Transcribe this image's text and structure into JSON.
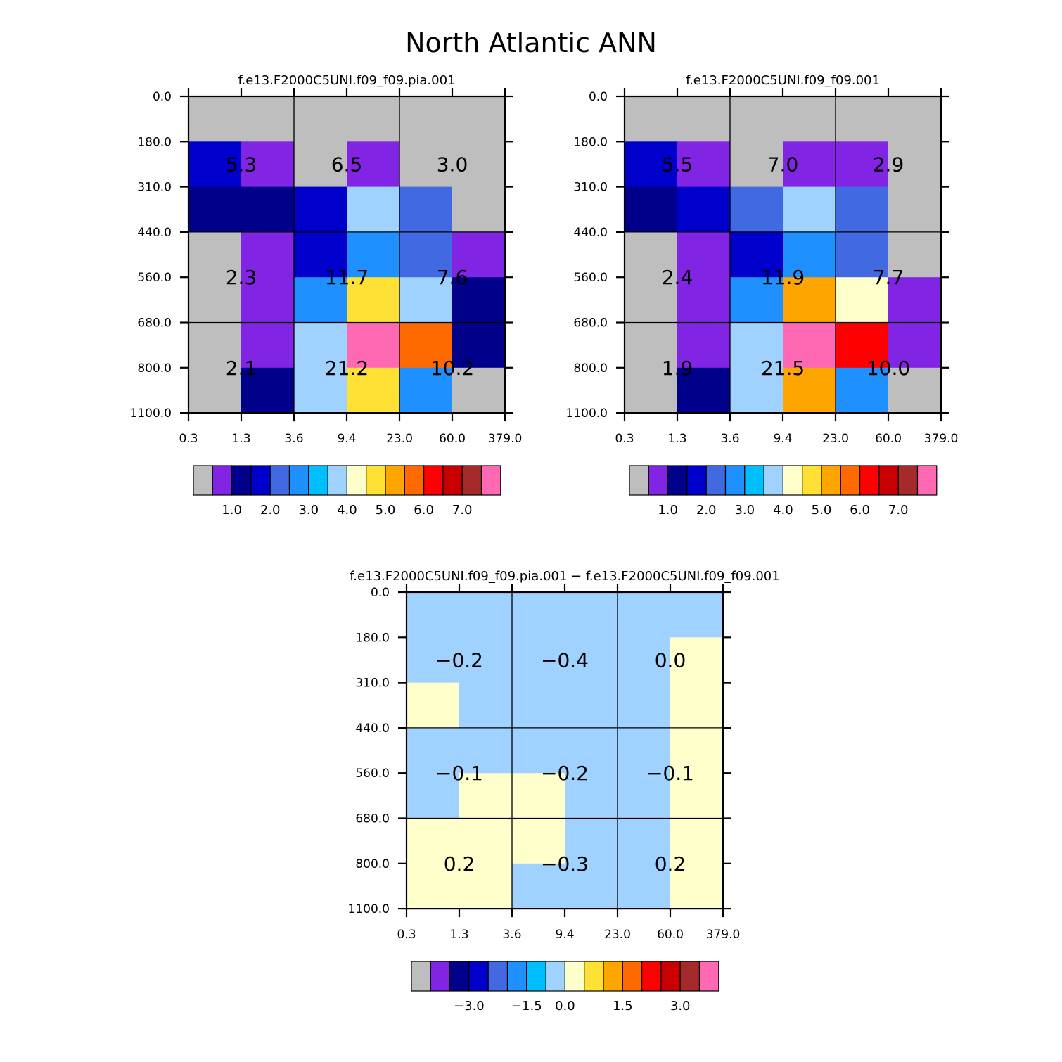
{
  "title": "North Atlantic ANN",
  "palette": [
    "#bebebe",
    "#8224e3",
    "#00008b",
    "#0000cd",
    "#4169e1",
    "#1e90ff",
    "#00bfff",
    "#a0d2ff",
    "#ffffcc",
    "#ffe135",
    "#ffa500",
    "#ff6a00",
    "#ff0000",
    "#c80000",
    "#a52a2a",
    "#ff69b4"
  ],
  "chart_data": [
    {
      "type": "heatmap",
      "title": "f.e13.F2000C5UNI.f09_f09.pia.001",
      "x_ticks": [
        "0.3",
        "1.3",
        "3.6",
        "9.4",
        "23.0",
        "60.0",
        "379.0"
      ],
      "y_ticks": [
        "0.0",
        "180.0",
        "310.0",
        "440.0",
        "560.0",
        "680.0",
        "800.0",
        "1100.0"
      ],
      "grid": true,
      "cell_color_index": [
        [
          0,
          0,
          0,
          0,
          0,
          0
        ],
        [
          3,
          1,
          0,
          1,
          0,
          0
        ],
        [
          2,
          2,
          3,
          7,
          4,
          0
        ],
        [
          0,
          1,
          3,
          5,
          4,
          1
        ],
        [
          0,
          1,
          5,
          9,
          7,
          2
        ],
        [
          0,
          1,
          7,
          15,
          11,
          2
        ],
        [
          0,
          2,
          7,
          9,
          5,
          0
        ]
      ],
      "block_values": [
        [
          "5.3",
          "6.5",
          "3.0"
        ],
        [
          "2.3",
          "11.7",
          "7.6"
        ],
        [
          "2.1",
          "21.2",
          "10.2"
        ]
      ],
      "colorbar": {
        "labels": [
          "1.0",
          "2.0",
          "3.0",
          "4.0",
          "5.0",
          "6.0",
          "7.0"
        ]
      }
    },
    {
      "type": "heatmap",
      "title": "f.e13.F2000C5UNI.f09_f09.001",
      "x_ticks": [
        "0.3",
        "1.3",
        "3.6",
        "9.4",
        "23.0",
        "60.0",
        "379.0"
      ],
      "y_ticks": [
        "0.0",
        "180.0",
        "310.0",
        "440.0",
        "560.0",
        "680.0",
        "800.0",
        "1100.0"
      ],
      "grid": true,
      "cell_color_index": [
        [
          0,
          0,
          0,
          0,
          0,
          0
        ],
        [
          3,
          1,
          0,
          1,
          1,
          0
        ],
        [
          2,
          3,
          4,
          7,
          4,
          0
        ],
        [
          0,
          1,
          3,
          5,
          4,
          0
        ],
        [
          0,
          1,
          5,
          10,
          8,
          1
        ],
        [
          0,
          1,
          7,
          15,
          12,
          1
        ],
        [
          0,
          2,
          7,
          10,
          5,
          0
        ]
      ],
      "block_values": [
        [
          "5.5",
          "7.0",
          "2.9"
        ],
        [
          "2.4",
          "11.9",
          "7.7"
        ],
        [
          "1.9",
          "21.5",
          "10.0"
        ]
      ],
      "colorbar": {
        "labels": [
          "1.0",
          "2.0",
          "3.0",
          "4.0",
          "5.0",
          "6.0",
          "7.0"
        ]
      }
    },
    {
      "type": "heatmap",
      "title": "f.e13.F2000C5UNI.f09_f09.pia.001 − f.e13.F2000C5UNI.f09_f09.001",
      "x_ticks": [
        "0.3",
        "1.3",
        "3.6",
        "9.4",
        "23.0",
        "60.0",
        "379.0"
      ],
      "y_ticks": [
        "0.0",
        "180.0",
        "310.0",
        "440.0",
        "560.0",
        "680.0",
        "800.0",
        "1100.0"
      ],
      "grid": true,
      "cell_color_index": [
        [
          7,
          7,
          7,
          7,
          7,
          7
        ],
        [
          7,
          7,
          7,
          7,
          7,
          8
        ],
        [
          8,
          7,
          7,
          7,
          7,
          8
        ],
        [
          7,
          7,
          7,
          7,
          7,
          8
        ],
        [
          7,
          8,
          8,
          7,
          7,
          8
        ],
        [
          8,
          8,
          8,
          7,
          7,
          8
        ],
        [
          8,
          8,
          7,
          7,
          7,
          8
        ]
      ],
      "block_values": [
        [
          "−0.2",
          "−0.4",
          "0.0"
        ],
        [
          "−0.1",
          "−0.2",
          "−0.1"
        ],
        [
          "0.2",
          "−0.3",
          "0.2"
        ]
      ],
      "colorbar": {
        "labels": [
          "−3.0",
          "−1.5",
          "0.0",
          "1.5",
          "3.0"
        ]
      }
    }
  ]
}
